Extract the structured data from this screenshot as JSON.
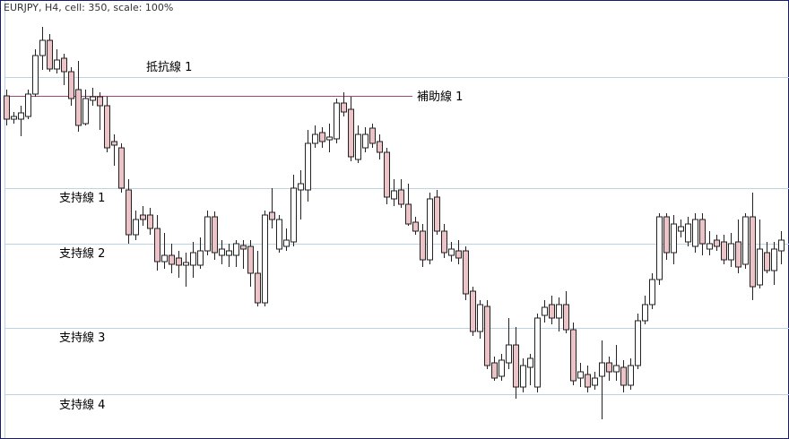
{
  "chart_data": {
    "type": "candlestick",
    "title": "EURJPY, H4, cell: 350, scale: 100%",
    "ylim": [
      0,
      490
    ],
    "up_color": "#ffffff",
    "down_color": "#ecc4c8",
    "edge_color": "#222222",
    "grid_color": "#bcd3e3",
    "levels": [
      {
        "label": "抵抗線 1",
        "value": 404
      },
      {
        "label": "補助線 1",
        "value": 383,
        "color": "#a0487a"
      },
      {
        "label": "支持線 1",
        "value": 280
      },
      {
        "label": "支持線 2",
        "value": 218
      },
      {
        "label": "支持線 3",
        "value": 124
      },
      {
        "label": "支持線 4",
        "value": 50
      }
    ],
    "ohlc": [
      [
        383,
        390,
        350,
        357
      ],
      [
        357,
        365,
        352,
        360
      ],
      [
        357,
        372,
        338,
        364
      ],
      [
        360,
        390,
        357,
        385
      ],
      [
        385,
        435,
        382,
        428
      ],
      [
        428,
        460,
        412,
        445
      ],
      [
        445,
        452,
        410,
        413
      ],
      [
        413,
        435,
        408,
        423
      ],
      [
        425,
        430,
        395,
        410
      ],
      [
        410,
        415,
        372,
        380
      ],
      [
        390,
        422,
        343,
        350
      ],
      [
        352,
        390,
        350,
        380
      ],
      [
        378,
        392,
        372,
        382
      ],
      [
        382,
        387,
        345,
        372
      ],
      [
        372,
        382,
        320,
        325
      ],
      [
        332,
        340,
        305,
        328
      ],
      [
        325,
        330,
        275,
        280
      ],
      [
        278,
        290,
        218,
        228
      ],
      [
        228,
        255,
        222,
        245
      ],
      [
        250,
        260,
        238,
        245
      ],
      [
        250,
        258,
        228,
        235
      ],
      [
        235,
        250,
        188,
        198
      ],
      [
        198,
        230,
        190,
        205
      ],
      [
        205,
        218,
        185,
        195
      ],
      [
        202,
        210,
        180,
        194
      ],
      [
        194,
        208,
        170,
        197
      ],
      [
        194,
        220,
        180,
        208
      ],
      [
        194,
        225,
        190,
        210
      ],
      [
        210,
        255,
        205,
        248
      ],
      [
        248,
        254,
        200,
        208
      ],
      [
        205,
        222,
        195,
        212
      ],
      [
        205,
        218,
        192,
        210
      ],
      [
        205,
        222,
        192,
        218
      ],
      [
        216,
        222,
        190,
        212
      ],
      [
        215,
        222,
        170,
        185
      ],
      [
        185,
        210,
        148,
        152
      ],
      [
        152,
        255,
        148,
        250
      ],
      [
        253,
        280,
        235,
        245
      ],
      [
        212,
        250,
        208,
        245
      ],
      [
        215,
        235,
        210,
        222
      ],
      [
        220,
        295,
        215,
        280
      ],
      [
        278,
        300,
        245,
        285
      ],
      [
        278,
        345,
        265,
        330
      ],
      [
        330,
        350,
        325,
        340
      ],
      [
        342,
        348,
        325,
        332
      ],
      [
        334,
        352,
        320,
        337
      ],
      [
        335,
        380,
        330,
        375
      ],
      [
        375,
        387,
        360,
        365
      ],
      [
        368,
        382,
        310,
        315
      ],
      [
        312,
        350,
        308,
        340
      ],
      [
        325,
        348,
        320,
        340
      ],
      [
        347,
        352,
        325,
        330
      ],
      [
        332,
        340,
        312,
        320
      ],
      [
        320,
        325,
        262,
        270
      ],
      [
        268,
        290,
        260,
        277
      ],
      [
        278,
        290,
        258,
        262
      ],
      [
        262,
        285,
        238,
        240
      ],
      [
        242,
        248,
        228,
        232
      ],
      [
        232,
        240,
        192,
        200
      ],
      [
        200,
        275,
        195,
        268
      ],
      [
        270,
        278,
        228,
        232
      ],
      [
        232,
        240,
        202,
        208
      ],
      [
        205,
        220,
        198,
        212
      ],
      [
        210,
        222,
        195,
        202
      ],
      [
        210,
        215,
        155,
        162
      ],
      [
        165,
        170,
        115,
        120
      ],
      [
        120,
        155,
        112,
        150
      ],
      [
        148,
        155,
        78,
        82
      ],
      [
        85,
        92,
        65,
        68
      ],
      [
        70,
        95,
        65,
        88
      ],
      [
        85,
        135,
        78,
        105
      ],
      [
        105,
        125,
        45,
        58
      ],
      [
        58,
        90,
        52,
        82
      ],
      [
        80,
        95,
        60,
        90
      ],
      [
        58,
        140,
        52,
        135
      ],
      [
        138,
        155,
        130,
        147
      ],
      [
        150,
        160,
        128,
        135
      ],
      [
        135,
        158,
        120,
        150
      ],
      [
        150,
        165,
        118,
        122
      ],
      [
        122,
        130,
        60,
        65
      ],
      [
        68,
        85,
        58,
        75
      ],
      [
        72,
        82,
        52,
        58
      ],
      [
        60,
        75,
        55,
        68
      ],
      [
        70,
        110,
        22,
        85
      ],
      [
        85,
        92,
        65,
        75
      ],
      [
        75,
        105,
        65,
        82
      ],
      [
        80,
        88,
        52,
        60
      ],
      [
        60,
        90,
        55,
        82
      ],
      [
        82,
        140,
        78,
        132
      ],
      [
        132,
        160,
        128,
        150
      ],
      [
        150,
        185,
        145,
        178
      ],
      [
        178,
        252,
        172,
        248
      ],
      [
        248,
        252,
        200,
        208
      ],
      [
        208,
        250,
        195,
        240
      ],
      [
        232,
        245,
        225,
        237
      ],
      [
        220,
        248,
        215,
        240
      ],
      [
        215,
        252,
        208,
        245
      ],
      [
        245,
        252,
        205,
        218
      ],
      [
        212,
        232,
        205,
        218
      ],
      [
        222,
        228,
        210,
        215
      ],
      [
        220,
        228,
        195,
        200
      ],
      [
        200,
        230,
        192,
        218
      ],
      [
        220,
        245,
        185,
        192
      ],
      [
        195,
        252,
        190,
        248
      ],
      [
        248,
        275,
        155,
        170
      ],
      [
        172,
        245,
        168,
        212
      ],
      [
        208,
        220,
        185,
        188
      ],
      [
        188,
        220,
        172,
        212
      ],
      [
        210,
        232,
        195,
        222
      ]
    ]
  }
}
